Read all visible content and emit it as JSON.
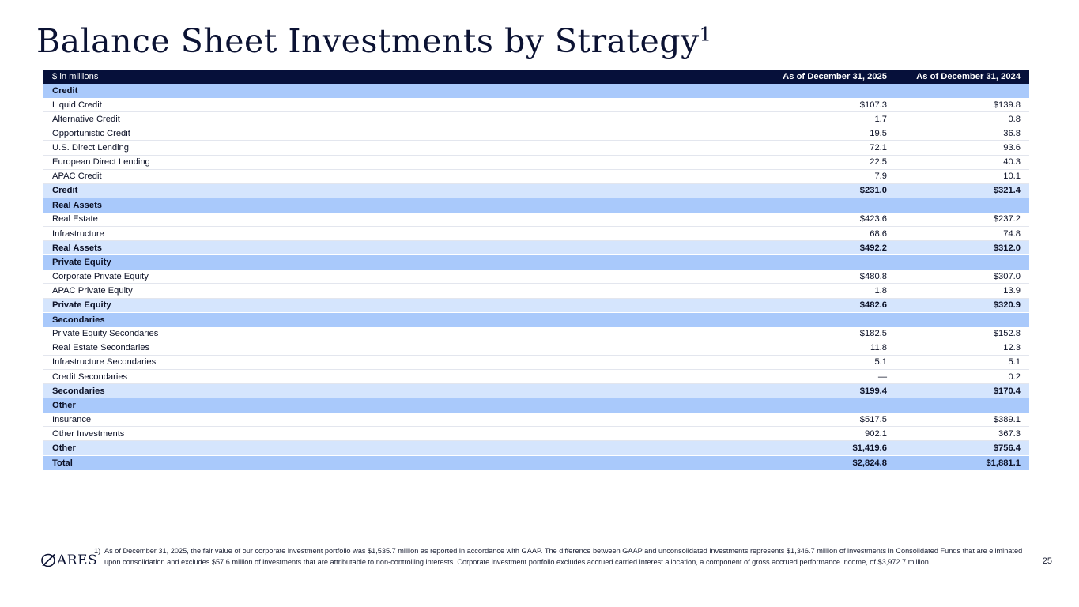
{
  "title": "Balance Sheet Investments by Strategy",
  "title_sup": "1",
  "table": {
    "header": {
      "label": "$ in millions",
      "col1": "As of December 31, 2025",
      "col2": "As of December 31, 2024"
    },
    "rows": [
      {
        "type": "section",
        "label": "Credit",
        "v1": "",
        "v2": ""
      },
      {
        "type": "item",
        "label": "Liquid Credit",
        "v1": "$107.3",
        "v2": "$139.8"
      },
      {
        "type": "item",
        "label": "Alternative Credit",
        "v1": "1.7",
        "v2": "0.8"
      },
      {
        "type": "item",
        "label": "Opportunistic Credit",
        "v1": "19.5",
        "v2": "36.8"
      },
      {
        "type": "item",
        "label": "U.S. Direct Lending",
        "v1": "72.1",
        "v2": "93.6"
      },
      {
        "type": "item",
        "label": "European Direct Lending",
        "v1": "22.5",
        "v2": "40.3"
      },
      {
        "type": "item",
        "label": "APAC Credit",
        "v1": "7.9",
        "v2": "10.1"
      },
      {
        "type": "subtotal",
        "label": "Credit",
        "v1": "$231.0",
        "v2": "$321.4"
      },
      {
        "type": "section",
        "label": "Real Assets",
        "v1": "",
        "v2": ""
      },
      {
        "type": "item",
        "label": "Real Estate",
        "v1": "$423.6",
        "v2": "$237.2"
      },
      {
        "type": "item",
        "label": "Infrastructure",
        "v1": "68.6",
        "v2": "74.8"
      },
      {
        "type": "subtotal",
        "label": "Real Assets",
        "v1": "$492.2",
        "v2": "$312.0"
      },
      {
        "type": "section",
        "label": "Private Equity",
        "v1": "",
        "v2": ""
      },
      {
        "type": "item",
        "label": "Corporate Private Equity",
        "v1": "$480.8",
        "v2": "$307.0"
      },
      {
        "type": "item",
        "label": "APAC Private Equity",
        "v1": "1.8",
        "v2": "13.9"
      },
      {
        "type": "subtotal",
        "label": "Private Equity",
        "v1": "$482.6",
        "v2": "$320.9"
      },
      {
        "type": "section",
        "label": "Secondaries",
        "v1": "",
        "v2": ""
      },
      {
        "type": "item",
        "label": "Private Equity Secondaries",
        "v1": "$182.5",
        "v2": "$152.8"
      },
      {
        "type": "item",
        "label": "Real Estate Secondaries",
        "v1": "11.8",
        "v2": "12.3"
      },
      {
        "type": "item",
        "label": "Infrastructure Secondaries",
        "v1": "5.1",
        "v2": "5.1"
      },
      {
        "type": "item",
        "label": "Credit Secondaries",
        "v1": "—",
        "v2": "0.2"
      },
      {
        "type": "subtotal",
        "label": "Secondaries",
        "v1": "$199.4",
        "v2": "$170.4"
      },
      {
        "type": "section",
        "label": "Other",
        "v1": "",
        "v2": ""
      },
      {
        "type": "item",
        "label": "Insurance",
        "v1": "$517.5",
        "v2": "$389.1"
      },
      {
        "type": "item",
        "label": "Other Investments",
        "v1": "902.1",
        "v2": "367.3"
      },
      {
        "type": "subtotal",
        "label": "Other",
        "v1": "$1,419.6",
        "v2": "$756.4"
      },
      {
        "type": "total",
        "label": "Total",
        "v1": "$2,824.8",
        "v2": "$1,881.1"
      }
    ]
  },
  "footnote": {
    "number": "1)",
    "text": "As of December 31, 2025, the fair value of our corporate investment portfolio was $1,535.7 million as reported in accordance with GAAP. The difference between GAAP and unconsolidated investments represents $1,346.7 million of investments in Consolidated Funds that are eliminated upon consolidation and excludes $57.6 million of investments that are attributable to non-controlling interests. Corporate investment portfolio excludes accrued carried interest allocation, a component of gross accrued performance income, of $3,972.7 million."
  },
  "logo": {
    "text": "ARES",
    "icon": "ares-logo-icon"
  },
  "page_number": "25"
}
